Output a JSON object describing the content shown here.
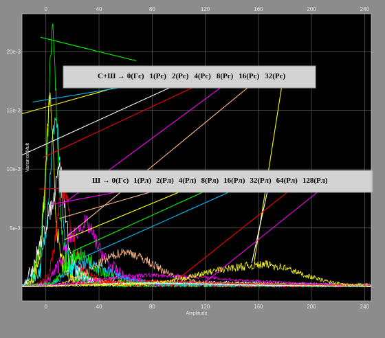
{
  "chart_data": {
    "type": "line",
    "xlabel": "Amplitude",
    "ylabel": "Variance Mult",
    "xlim": [
      -18,
      245
    ],
    "ylim": [
      -0.0012,
      0.0232
    ],
    "x_ticks": [
      0,
      40,
      80,
      120,
      160,
      200,
      240
    ],
    "y_ticks": [
      {
        "value": 0.005,
        "label": "5e-3"
      },
      {
        "value": 0.01,
        "label": "10e-3"
      },
      {
        "value": 0.015,
        "label": "15e-3"
      },
      {
        "value": 0.02,
        "label": "20e-3"
      }
    ],
    "grid": true,
    "background": "#000000",
    "legends": [
      {
        "entries": [
          "С+Ш → 0(Гс)",
          "1(Рс)",
          "2(Рс)",
          "4(Рс)",
          "8(Рс)",
          "16(Рс)",
          "32(Рс)"
        ],
        "colors": [
          "#ffff00",
          "#00bfff",
          "#ffffff",
          "#ff0000",
          "#ff00ff",
          "#ffbb88",
          "#ffff00"
        ],
        "targets": [
          [
            -18,
            0.0147
          ],
          [
            -10,
            0.0157
          ],
          [
            -18,
            0.0112
          ],
          [
            -2,
            0.011
          ],
          [
            10,
            0.0068
          ],
          [
            16,
            0.0043
          ],
          [
            157,
            0.0022
          ]
        ]
      },
      {
        "entries": [
          "Ш → 0(Гс)",
          "1(Рл)",
          "2(Рл)",
          "4(Рл)",
          "8(Рл)",
          "16(Рл)",
          "32(Рл)",
          "64(Рл)",
          "128(Рл)"
        ],
        "colors": [
          "#ff0000",
          "#ff00ff",
          "#ffbb88",
          "#ffff00",
          "#00ff00",
          "#00bfff",
          "#ffffff",
          "#ff0000",
          "#ff00ff"
        ],
        "targets": [
          [
            -5,
            0.0083
          ],
          [
            4,
            0.007
          ],
          [
            10,
            0.0058
          ],
          [
            14,
            0.004
          ],
          [
            20,
            0.003
          ],
          [
            28,
            0.0025
          ],
          [
            155,
            0.002
          ],
          [
            100,
            0.0007
          ],
          [
            120,
            0.0004
          ]
        ]
      }
    ],
    "pointer_extra": {
      "color": "#00ff00",
      "from": [
        -4,
        0.0212
      ],
      "to": [
        68,
        0.0192
      ]
    },
    "series": [
      {
        "color": "#00ff00",
        "points": [
          [
            -18,
            0
          ],
          [
            -12,
            0.0002
          ],
          [
            -6,
            0.002
          ],
          [
            -2,
            0.006
          ],
          [
            1,
            0.012
          ],
          [
            3,
            0.018
          ],
          [
            5,
            0.0232
          ],
          [
            7,
            0.018
          ],
          [
            9,
            0.011
          ],
          [
            11,
            0.006
          ],
          [
            14,
            0.003
          ],
          [
            18,
            0.0018
          ],
          [
            24,
            0.0012
          ],
          [
            32,
            0.0006
          ],
          [
            45,
            0.0002
          ],
          [
            60,
            0.0001
          ],
          [
            245,
            5e-05
          ]
        ],
        "noise": 0.0012
      },
      {
        "color": "#00ffff",
        "points": [
          [
            -18,
            0
          ],
          [
            -4,
            0.0015
          ],
          [
            0,
            0.005
          ],
          [
            3,
            0.009
          ],
          [
            5,
            0.0125
          ],
          [
            7,
            0.0145
          ],
          [
            9,
            0.013
          ],
          [
            11,
            0.009
          ],
          [
            14,
            0.004
          ],
          [
            18,
            0.0018
          ],
          [
            25,
            0.001
          ],
          [
            35,
            0.0005
          ],
          [
            50,
            0.0002
          ],
          [
            245,
            5e-05
          ]
        ],
        "noise": 0.0009
      },
      {
        "color": "#ffff00",
        "points": [
          [
            -18,
            0
          ],
          [
            -10,
            0.0005
          ],
          [
            -4,
            0.003
          ],
          [
            -1,
            0.008
          ],
          [
            1,
            0.013
          ],
          [
            3,
            0.0165
          ],
          [
            5,
            0.0125
          ],
          [
            7,
            0.007
          ],
          [
            10,
            0.003
          ],
          [
            14,
            0.0015
          ],
          [
            20,
            0.0007
          ],
          [
            30,
            0.0003
          ],
          [
            245,
            0.0001
          ]
        ],
        "noise": 0.0009
      },
      {
        "color": "#ffffff",
        "points": [
          [
            -18,
            0
          ],
          [
            -12,
            0.0012
          ],
          [
            -6,
            0.003
          ],
          [
            -2,
            0.0045
          ],
          [
            2,
            0.006
          ],
          [
            6,
            0.0075
          ],
          [
            9,
            0.0105
          ],
          [
            12,
            0.0095
          ],
          [
            15,
            0.006
          ],
          [
            18,
            0.003
          ],
          [
            22,
            0.0015
          ],
          [
            30,
            0.0008
          ],
          [
            40,
            0.0004
          ],
          [
            245,
            0.0001
          ]
        ],
        "noise": 0.0008
      },
      {
        "color": "#ff0000",
        "points": [
          [
            -18,
            0
          ],
          [
            -5,
            0.0002
          ],
          [
            2,
            0.001
          ],
          [
            6,
            0.003
          ],
          [
            9,
            0.006
          ],
          [
            11,
            0.0082
          ],
          [
            13,
            0.0075
          ],
          [
            15,
            0.0085
          ],
          [
            17,
            0.0065
          ],
          [
            20,
            0.0045
          ],
          [
            24,
            0.0025
          ],
          [
            30,
            0.0012
          ],
          [
            40,
            0.0005
          ],
          [
            60,
            0.0002
          ],
          [
            245,
            5e-05
          ]
        ],
        "noise": 0.0008
      },
      {
        "color": "#ff00ff",
        "points": [
          [
            -18,
            0
          ],
          [
            0,
            0.0003
          ],
          [
            8,
            0.0015
          ],
          [
            14,
            0.003
          ],
          [
            18,
            0.0042
          ],
          [
            22,
            0.0045
          ],
          [
            26,
            0.005
          ],
          [
            30,
            0.0055
          ],
          [
            34,
            0.0048
          ],
          [
            40,
            0.0032
          ],
          [
            48,
            0.0018
          ],
          [
            60,
            0.0008
          ],
          [
            80,
            0.0003
          ],
          [
            245,
            0.0001
          ]
        ],
        "noise": 0.0007
      },
      {
        "color": "#00ff00",
        "points": [
          [
            -18,
            0
          ],
          [
            5,
            0.0003
          ],
          [
            12,
            0.0012
          ],
          [
            18,
            0.0022
          ],
          [
            25,
            0.0028
          ],
          [
            32,
            0.0023
          ],
          [
            40,
            0.0016
          ],
          [
            50,
            0.0008
          ],
          [
            65,
            0.0003
          ],
          [
            245,
            0.0001
          ]
        ],
        "noise": 0.0007
      },
      {
        "color": "#00bfff",
        "points": [
          [
            -18,
            0
          ],
          [
            5,
            0.0002
          ],
          [
            12,
            0.0008
          ],
          [
            20,
            0.0016
          ],
          [
            30,
            0.002
          ],
          [
            40,
            0.0017
          ],
          [
            50,
            0.0012
          ],
          [
            65,
            0.0006
          ],
          [
            85,
            0.0002
          ],
          [
            245,
            0.0001
          ]
        ],
        "noise": 0.0005
      },
      {
        "color": "#ffbb88",
        "points": [
          [
            -18,
            0
          ],
          [
            10,
            0.0002
          ],
          [
            25,
            0.0008
          ],
          [
            38,
            0.0018
          ],
          [
            48,
            0.0025
          ],
          [
            58,
            0.003
          ],
          [
            66,
            0.0028
          ],
          [
            76,
            0.0022
          ],
          [
            88,
            0.0014
          ],
          [
            100,
            0.0008
          ],
          [
            115,
            0.0004
          ],
          [
            135,
            0.0002
          ],
          [
            245,
            0.0001
          ]
        ],
        "noise": 0.0004
      },
      {
        "color": "#ff00ff",
        "points": [
          [
            -18,
            0
          ],
          [
            20,
            0.0003
          ],
          [
            40,
            0.0006
          ],
          [
            60,
            0.0009
          ],
          [
            80,
            0.001
          ],
          [
            100,
            0.0009
          ],
          [
            120,
            0.0008
          ],
          [
            140,
            0.0006
          ],
          [
            160,
            0.0005
          ],
          [
            190,
            0.0003
          ],
          [
            245,
            0.0001
          ]
        ],
        "noise": 0.00025
      },
      {
        "color": "#ff0000",
        "points": [
          [
            -18,
            0
          ],
          [
            20,
            0.0002
          ],
          [
            50,
            0.0004
          ],
          [
            80,
            0.0005
          ],
          [
            110,
            0.0004
          ],
          [
            140,
            0.0003
          ],
          [
            180,
            0.0002
          ],
          [
            245,
            0.0001
          ]
        ],
        "noise": 0.0002
      },
      {
        "color": "#ffff00",
        "points": [
          [
            -18,
            0
          ],
          [
            70,
            0.0002
          ],
          [
            95,
            0.0005
          ],
          [
            110,
            0.0009
          ],
          [
            125,
            0.0013
          ],
          [
            140,
            0.0016
          ],
          [
            155,
            0.0018
          ],
          [
            168,
            0.0019
          ],
          [
            180,
            0.0016
          ],
          [
            195,
            0.001
          ],
          [
            210,
            0.0005
          ],
          [
            225,
            0.0002
          ],
          [
            245,
            5e-05
          ]
        ],
        "noise": 0.00035
      },
      {
        "color": "#ffffff",
        "points": [
          [
            -18,
            0
          ],
          [
            30,
            0.0002
          ],
          [
            60,
            0.0003
          ],
          [
            90,
            0.0003
          ],
          [
            130,
            0.0002
          ],
          [
            180,
            0.0001
          ],
          [
            245,
            5e-05
          ]
        ],
        "noise": 0.00015
      }
    ]
  }
}
